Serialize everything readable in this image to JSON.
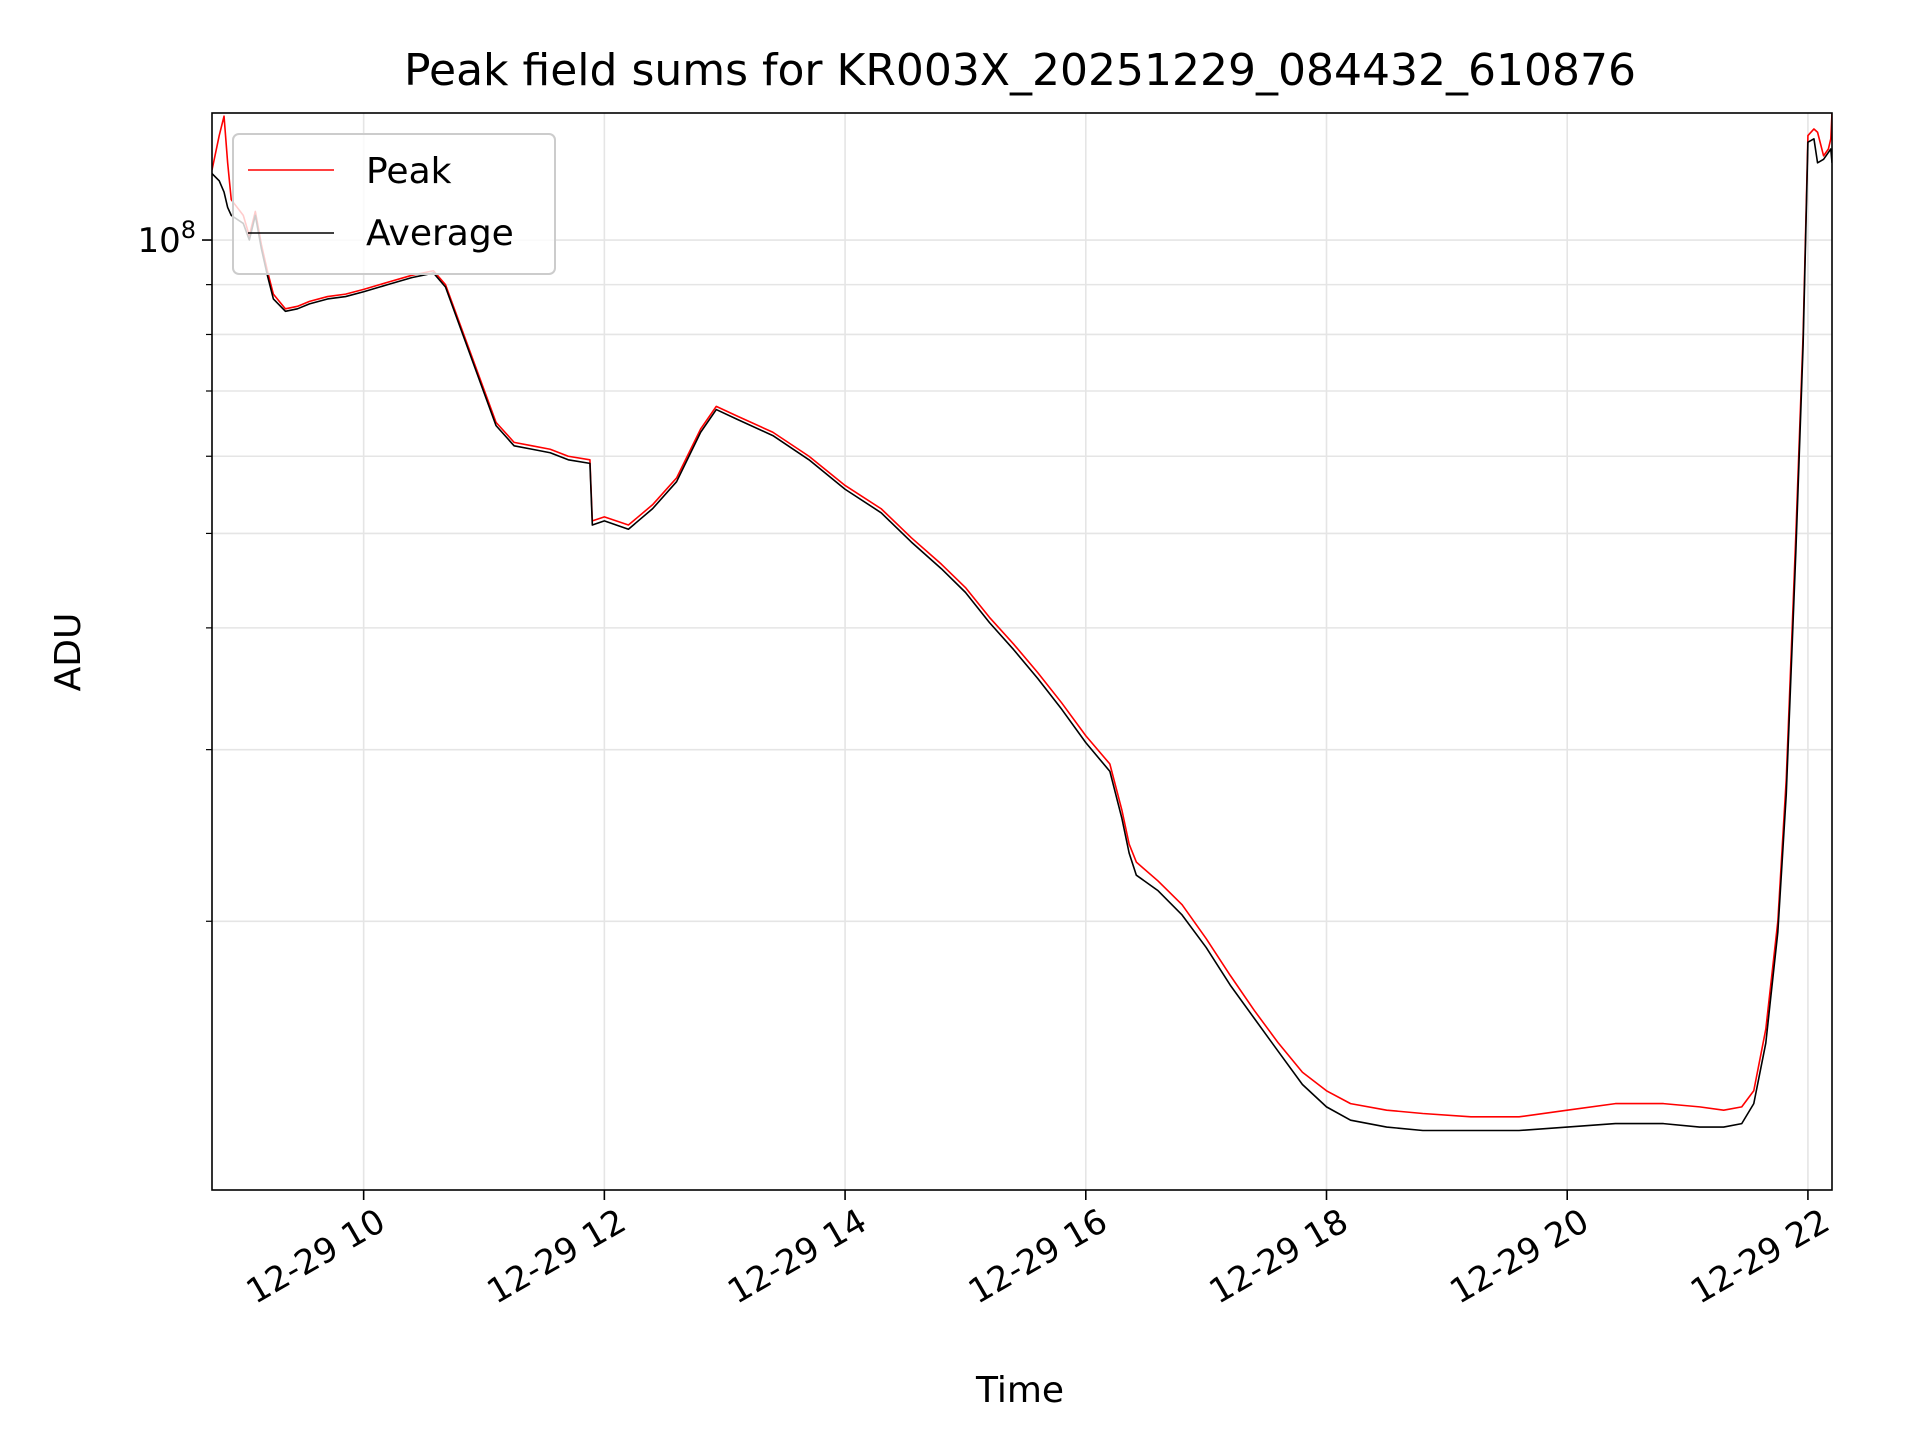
{
  "chart_data": {
    "type": "line",
    "title": "Peak field sums for KR003X_20251229_084432_610876",
    "xlabel": "Time",
    "ylabel": "ADU",
    "yscale": "log",
    "grid": true,
    "legend_position": "top-left",
    "x_unit": "hours since 12-29 00:00",
    "xlim": [
      8.74,
      22.2
    ],
    "ylim": [
      10.6,
      135
    ],
    "y_unit": "millions of ADU",
    "x_ticks": [
      {
        "value": 10,
        "label": "12-29 10"
      },
      {
        "value": 12,
        "label": "12-29 12"
      },
      {
        "value": 14,
        "label": "12-29 14"
      },
      {
        "value": 16,
        "label": "12-29 16"
      },
      {
        "value": 18,
        "label": "12-29 18"
      },
      {
        "value": 20,
        "label": "12-29 20"
      },
      {
        "value": 22,
        "label": "12-29 22"
      }
    ],
    "y_major_ticks": [
      {
        "value": 100,
        "label_base": "10",
        "label_exp": "8"
      }
    ],
    "y_minor_ticks": [
      20,
      30,
      40,
      50,
      60,
      70,
      80,
      90
    ],
    "series": [
      {
        "name": "Peak",
        "color": "#ff0000",
        "x": [
          8.74,
          8.8,
          8.84,
          8.87,
          8.9,
          9.0,
          9.05,
          9.1,
          9.15,
          9.2,
          9.25,
          9.35,
          9.45,
          9.55,
          9.7,
          9.85,
          10.0,
          10.2,
          10.4,
          10.58,
          10.68,
          10.8,
          10.95,
          11.1,
          11.25,
          11.4,
          11.55,
          11.7,
          11.88,
          11.9,
          12.0,
          12.2,
          12.4,
          12.6,
          12.8,
          12.93,
          13.1,
          13.4,
          13.7,
          14.0,
          14.3,
          14.55,
          14.8,
          15.0,
          15.2,
          15.4,
          15.6,
          15.8,
          16.0,
          16.2,
          16.3,
          16.36,
          16.42,
          16.6,
          16.8,
          17.0,
          17.2,
          17.4,
          17.6,
          17.8,
          18.0,
          18.2,
          18.5,
          18.8,
          19.2,
          19.6,
          20.0,
          20.4,
          20.8,
          21.1,
          21.3,
          21.45,
          21.55,
          21.65,
          21.75,
          21.82,
          21.9,
          21.96,
          22.0,
          22.05,
          22.08,
          22.13,
          22.17,
          22.19,
          22.2
        ],
        "y": [
          118,
          128,
          134,
          120,
          110,
          106,
          101,
          107,
          99,
          93,
          88,
          85,
          85.5,
          86.5,
          87.5,
          88,
          89,
          90.5,
          92,
          93,
          90,
          82,
          73,
          65,
          62,
          61.5,
          61,
          60,
          59.5,
          51.5,
          52,
          51,
          53.5,
          57,
          64,
          67.5,
          66,
          63.5,
          60,
          56,
          53,
          49.5,
          46.5,
          44,
          41,
          38.5,
          36,
          33.5,
          31,
          29,
          26,
          24,
          23,
          22,
          20.8,
          19.2,
          17.6,
          16.2,
          15,
          14,
          13.4,
          13,
          12.8,
          12.7,
          12.6,
          12.6,
          12.8,
          13.0,
          13.0,
          12.9,
          12.8,
          12.9,
          13.4,
          15.5,
          20,
          28,
          50,
          80,
          128,
          130,
          129,
          122,
          124,
          127,
          135
        ]
      },
      {
        "name": "Average",
        "color": "#000000",
        "x": [
          8.74,
          8.8,
          8.84,
          8.87,
          8.9,
          9.0,
          9.05,
          9.1,
          9.15,
          9.2,
          9.25,
          9.35,
          9.45,
          9.55,
          9.7,
          9.85,
          10.0,
          10.2,
          10.4,
          10.58,
          10.68,
          10.8,
          10.95,
          11.1,
          11.25,
          11.4,
          11.55,
          11.7,
          11.88,
          11.9,
          12.0,
          12.2,
          12.4,
          12.6,
          12.8,
          12.93,
          13.1,
          13.4,
          13.7,
          14.0,
          14.3,
          14.55,
          14.8,
          15.0,
          15.2,
          15.4,
          15.6,
          15.8,
          16.0,
          16.2,
          16.3,
          16.36,
          16.42,
          16.6,
          16.8,
          17.0,
          17.2,
          17.4,
          17.6,
          17.8,
          18.0,
          18.2,
          18.5,
          18.8,
          19.2,
          19.6,
          20.0,
          20.4,
          20.8,
          21.1,
          21.3,
          21.45,
          21.55,
          21.65,
          21.75,
          21.82,
          21.9,
          21.96,
          22.0,
          22.05,
          22.08,
          22.13,
          22.17,
          22.19,
          22.2
        ],
        "y": [
          117,
          115,
          112,
          108,
          106,
          104,
          100,
          106,
          98,
          92,
          87,
          84.5,
          85,
          86,
          87,
          87.5,
          88.5,
          90,
          91.5,
          92.5,
          89.5,
          81.5,
          72.5,
          64.5,
          61.5,
          61,
          60.5,
          59.5,
          59,
          51,
          51.5,
          50.5,
          53,
          56.5,
          63.5,
          67,
          65.5,
          63,
          59.5,
          55.5,
          52.5,
          49,
          46,
          43.5,
          40.5,
          38,
          35.5,
          33,
          30.5,
          28.5,
          25.5,
          23.5,
          22.3,
          21.5,
          20.3,
          18.8,
          17.2,
          15.9,
          14.7,
          13.6,
          12.9,
          12.5,
          12.3,
          12.2,
          12.2,
          12.2,
          12.3,
          12.4,
          12.4,
          12.3,
          12.3,
          12.4,
          13.0,
          15.0,
          19.5,
          27,
          48,
          78,
          126,
          127,
          120,
          121,
          123,
          124,
          120
        ]
      }
    ]
  }
}
